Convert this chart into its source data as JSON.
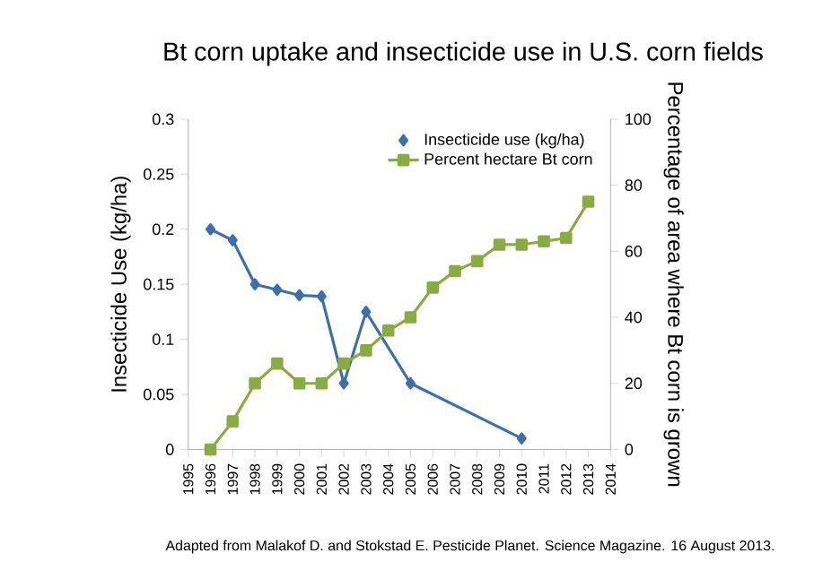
{
  "chart_data": {
    "type": "line",
    "title": "Bt corn uptake and insecticide use in U.S. corn fields",
    "ylabel": "Insecticide Use (kg/ha)",
    "y2label": "Percentage of area where Bt corn is grown",
    "x": [
      1996,
      1997,
      1998,
      1999,
      2000,
      2001,
      2002,
      2003,
      2004,
      2005,
      2006,
      2007,
      2008,
      2009,
      2010,
      2011,
      2012,
      2013
    ],
    "series": [
      {
        "name": "Insecticide use (kg/ha)",
        "color": "#3d6fa8",
        "marker": "diamond",
        "x": [
          1996,
          1997,
          1998,
          1999,
          2000,
          2001,
          2002,
          2003,
          2005,
          2010
        ],
        "values": [
          0.2,
          0.19,
          0.15,
          0.145,
          0.14,
          0.139,
          0.06,
          0.125,
          0.06,
          0.01
        ]
      },
      {
        "name": "Percent hectare Bt corn",
        "color": "#8aaa44",
        "marker": "square",
        "axis": "y2",
        "values": [
          0,
          8.5,
          20,
          26,
          20,
          20,
          26,
          30,
          36,
          40,
          49,
          54,
          57,
          62,
          62,
          63,
          64,
          75
        ]
      }
    ],
    "xlim": [
      1995,
      2014
    ],
    "xticks": [
      1995,
      1996,
      1997,
      1998,
      1999,
      2000,
      2001,
      2002,
      2003,
      2004,
      2005,
      2006,
      2007,
      2008,
      2009,
      2010,
      2011,
      2012,
      2013,
      2014
    ],
    "ylim": [
      0,
      0.3
    ],
    "yticks": [
      0,
      0.05,
      0.1,
      0.15,
      0.2,
      0.25,
      0.3
    ],
    "y2lim": [
      0,
      100
    ],
    "y2ticks": [
      0,
      20,
      40,
      60,
      80,
      100
    ],
    "grid": false,
    "legend": "top right",
    "annotations": [
      "Adapted from Malakof D. and Stokstad E. Pesticide Planet. Science Magazine. 16 August 2013."
    ]
  }
}
